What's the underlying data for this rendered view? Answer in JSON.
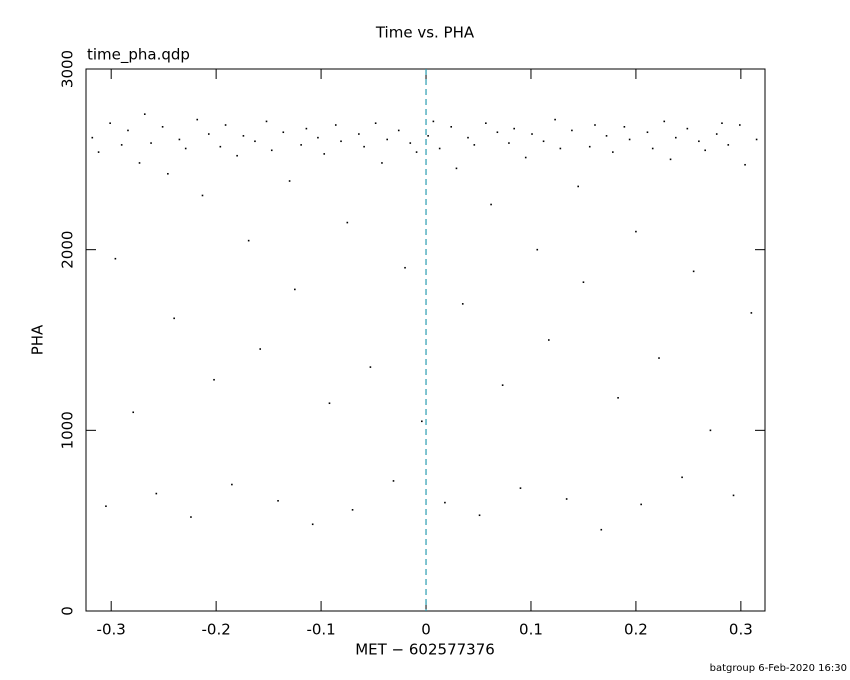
{
  "chart_data": {
    "type": "scatter",
    "title": "Time vs. PHA",
    "annotation": "time_pha.qdp",
    "x_label": "MET − 602577376",
    "y_label": "PHA",
    "footer": "batgroup  6-Feb-2020 16:30",
    "xlim": [
      -0.324,
      0.323
    ],
    "ylim": [
      0,
      3000
    ],
    "xticks": [
      -0.3,
      -0.2,
      -0.1,
      0,
      0.1,
      0.2,
      0.3
    ],
    "yticks": [
      0,
      1000,
      2000,
      3000
    ],
    "vline": {
      "x": 0,
      "color": "#2a9db0"
    },
    "series": [
      {
        "color": "#000000",
        "x": [
          -0.318,
          -0.312,
          -0.305,
          -0.301,
          -0.296,
          -0.29,
          -0.284,
          -0.279,
          -0.273,
          -0.268,
          -0.262,
          -0.257,
          -0.251,
          -0.246,
          -0.24,
          -0.235,
          -0.229,
          -0.224,
          -0.218,
          -0.213,
          -0.207,
          -0.202,
          -0.196,
          -0.191,
          -0.185,
          -0.18,
          -0.174,
          -0.169,
          -0.163,
          -0.158,
          -0.152,
          -0.147,
          -0.141,
          -0.136,
          -0.13,
          -0.125,
          -0.119,
          -0.114,
          -0.108,
          -0.103,
          -0.097,
          -0.092,
          -0.086,
          -0.081,
          -0.075,
          -0.07,
          -0.064,
          -0.059,
          -0.053,
          -0.048,
          -0.042,
          -0.037,
          -0.031,
          -0.026,
          -0.02,
          -0.015,
          -0.009,
          -0.004,
          0.002,
          0.007,
          0.013,
          0.018,
          0.024,
          0.029,
          0.035,
          0.04,
          0.046,
          0.051,
          0.057,
          0.062,
          0.068,
          0.073,
          0.079,
          0.084,
          0.09,
          0.095,
          0.101,
          0.106,
          0.112,
          0.117,
          0.123,
          0.128,
          0.134,
          0.139,
          0.145,
          0.15,
          0.156,
          0.161,
          0.167,
          0.172,
          0.178,
          0.183,
          0.189,
          0.194,
          0.2,
          0.205,
          0.211,
          0.216,
          0.222,
          0.227,
          0.233,
          0.238,
          0.244,
          0.249,
          0.255,
          0.26,
          0.266,
          0.271,
          0.277,
          0.282,
          0.288,
          0.293,
          0.299,
          0.304,
          0.31,
          0.315
        ],
        "values": [
          2620,
          2540,
          580,
          2700,
          1950,
          2580,
          2660,
          1100,
          2480,
          2750,
          2590,
          650,
          2680,
          2420,
          1620,
          2610,
          2560,
          520,
          2720,
          2300,
          2640,
          1280,
          2570,
          2690,
          700,
          2520,
          2630,
          2050,
          2600,
          1450,
          2710,
          2550,
          610,
          2650,
          2380,
          1780,
          2580,
          2670,
          480,
          2620,
          2530,
          1150,
          2690,
          2600,
          2150,
          560,
          2640,
          2570,
          1350,
          2700,
          2480,
          2610,
          720,
          2660,
          1900,
          2590,
          2540,
          1050,
          2630,
          2710,
          2560,
          600,
          2680,
          2450,
          1700,
          2620,
          2580,
          530,
          2700,
          2250,
          2650,
          1250,
          2590,
          2670,
          680,
          2510,
          2640,
          2000,
          2600,
          1500,
          2720,
          2560,
          620,
          2660,
          2350,
          1820,
          2570,
          2690,
          450,
          2630,
          2540,
          1180,
          2680,
          2610,
          2100,
          590,
          2650,
          2560,
          1400,
          2710,
          2500,
          2620,
          740,
          2670,
          1880,
          2600,
          2550,
          1000,
          2640,
          2700,
          2580,
          640,
          2690,
          2470,
          1650,
          2610
        ]
      }
    ]
  }
}
